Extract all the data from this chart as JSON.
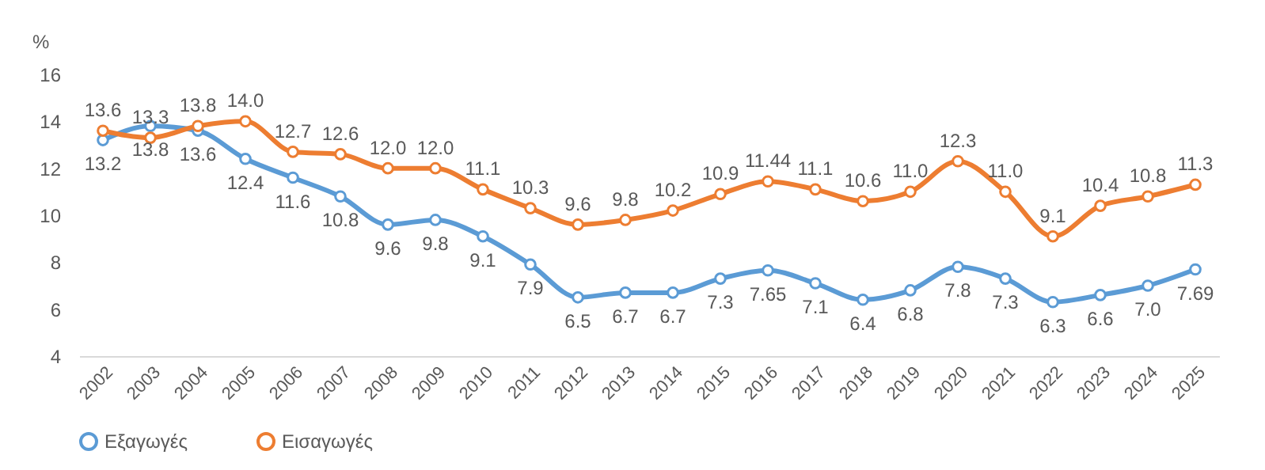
{
  "chart_data": {
    "type": "line",
    "ylabel": "%",
    "categories": [
      "2002",
      "2003",
      "2004",
      "2005",
      "2006",
      "2007",
      "2008",
      "2009",
      "2010",
      "2011",
      "2012",
      "2013",
      "2014",
      "2015",
      "2016",
      "2017",
      "2018",
      "2019",
      "2020",
      "2021",
      "2022",
      "2023",
      "2024",
      "2025"
    ],
    "series": [
      {
        "name": "Εξαγωγές",
        "color": "#5b9bd5",
        "values": [
          13.2,
          13.8,
          13.6,
          12.4,
          11.6,
          10.8,
          9.6,
          9.8,
          9.1,
          7.9,
          6.5,
          6.7,
          6.7,
          7.3,
          7.65,
          7.1,
          6.4,
          6.8,
          7.8,
          7.3,
          6.3,
          6.6,
          7.0,
          7.69
        ],
        "value_labels": [
          "13.2",
          "13.8",
          "13.6",
          "12.4",
          "11.6",
          "10.8",
          "9.6",
          "9.8",
          "9.1",
          "7.9",
          "6.5",
          "6.7",
          "6.7",
          "7.3",
          "7.65",
          "7.1",
          "6.4",
          "6.8",
          "7.8",
          "7.3",
          "6.3",
          "6.6",
          "7.0",
          "7.69"
        ]
      },
      {
        "name": "Εισαγωγές",
        "color": "#ed7d31",
        "values": [
          13.6,
          13.3,
          13.8,
          14.0,
          12.7,
          12.6,
          12.0,
          12.0,
          11.1,
          10.3,
          9.6,
          9.8,
          10.2,
          10.9,
          11.44,
          11.1,
          10.6,
          11.0,
          12.3,
          11.0,
          9.1,
          10.4,
          10.8,
          11.3
        ],
        "value_labels": [
          "13.6",
          "13.3",
          "13.8",
          "14.0",
          "12.7",
          "12.6",
          "12.0",
          "12.0",
          "11.1",
          "10.3",
          "9.6",
          "9.8",
          "10.2",
          "10.9",
          "11.44",
          "11.1",
          "10.6",
          "11.0",
          "12.3",
          "11.0",
          "9.1",
          "10.4",
          "10.8",
          "11.3"
        ]
      }
    ],
    "ylim": [
      4,
      16
    ],
    "yticks": [
      4,
      6,
      8,
      10,
      12,
      14,
      16
    ],
    "grid": false,
    "legend": "bottom",
    "marker": "circle",
    "line_style": "solid"
  }
}
